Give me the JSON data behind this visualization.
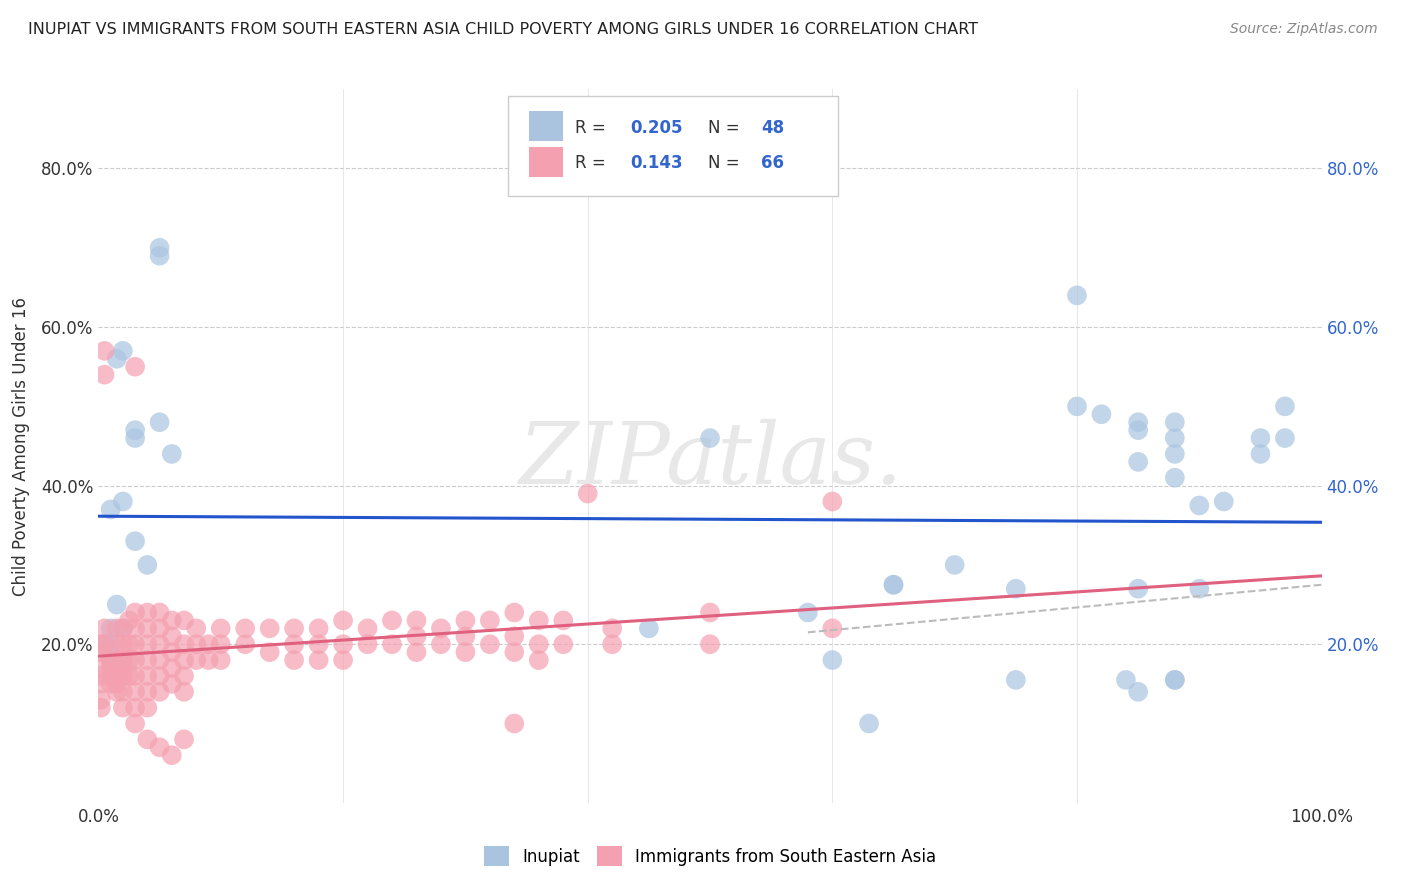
{
  "title": "INUPIAT VS IMMIGRANTS FROM SOUTH EASTERN ASIA CHILD POVERTY AMONG GIRLS UNDER 16 CORRELATION CHART",
  "source": "Source: ZipAtlas.com",
  "ylabel": "Child Poverty Among Girls Under 16",
  "xlim": [
    0.0,
    1.0
  ],
  "ylim": [
    0.0,
    0.9
  ],
  "background_color": "#ffffff",
  "grid_color": "#cccccc",
  "watermark_text": "ZIPatlas.",
  "inupiat_color": "#aac4e0",
  "immigrants_color": "#f4a0b0",
  "inupiat_line_color": "#2255cc",
  "immigrants_line_color": "#e06080",
  "dash_line_color": "#bbbbbb",
  "inupiat_scatter": [
    [
      0.005,
      0.2
    ],
    [
      0.01,
      0.22
    ],
    [
      0.01,
      0.18
    ],
    [
      0.01,
      0.2
    ],
    [
      0.015,
      0.25
    ],
    [
      0.02,
      0.57
    ],
    [
      0.02,
      0.18
    ],
    [
      0.02,
      0.22
    ],
    [
      0.03,
      0.46
    ],
    [
      0.03,
      0.33
    ],
    [
      0.04,
      0.3
    ],
    [
      0.05,
      0.7
    ],
    [
      0.05,
      0.69
    ],
    [
      0.05,
      0.48
    ],
    [
      0.06,
      0.44
    ],
    [
      0.03,
      0.47
    ],
    [
      0.02,
      0.38
    ],
    [
      0.015,
      0.56
    ],
    [
      0.01,
      0.37
    ],
    [
      0.5,
      0.46
    ],
    [
      0.58,
      0.24
    ],
    [
      0.65,
      0.275
    ],
    [
      0.65,
      0.275
    ],
    [
      0.7,
      0.3
    ],
    [
      0.75,
      0.27
    ],
    [
      0.8,
      0.64
    ],
    [
      0.8,
      0.5
    ],
    [
      0.82,
      0.49
    ],
    [
      0.84,
      0.155
    ],
    [
      0.85,
      0.48
    ],
    [
      0.85,
      0.47
    ],
    [
      0.85,
      0.43
    ],
    [
      0.85,
      0.27
    ],
    [
      0.88,
      0.48
    ],
    [
      0.88,
      0.46
    ],
    [
      0.88,
      0.44
    ],
    [
      0.88,
      0.41
    ],
    [
      0.9,
      0.375
    ],
    [
      0.9,
      0.27
    ],
    [
      0.92,
      0.38
    ],
    [
      0.95,
      0.46
    ],
    [
      0.95,
      0.44
    ],
    [
      0.97,
      0.5
    ],
    [
      0.97,
      0.46
    ],
    [
      0.6,
      0.18
    ],
    [
      0.63,
      0.1
    ],
    [
      0.75,
      0.155
    ],
    [
      0.85,
      0.14
    ],
    [
      0.88,
      0.155
    ],
    [
      0.88,
      0.155
    ],
    [
      0.45,
      0.22
    ]
  ],
  "immigrants_scatter": [
    [
      0.002,
      0.2
    ],
    [
      0.002,
      0.19
    ],
    [
      0.002,
      0.17
    ],
    [
      0.002,
      0.16
    ],
    [
      0.002,
      0.15
    ],
    [
      0.002,
      0.13
    ],
    [
      0.002,
      0.12
    ],
    [
      0.005,
      0.57
    ],
    [
      0.005,
      0.54
    ],
    [
      0.005,
      0.22
    ],
    [
      0.005,
      0.2
    ],
    [
      0.01,
      0.18
    ],
    [
      0.01,
      0.17
    ],
    [
      0.01,
      0.16
    ],
    [
      0.01,
      0.15
    ],
    [
      0.015,
      0.22
    ],
    [
      0.015,
      0.2
    ],
    [
      0.015,
      0.18
    ],
    [
      0.015,
      0.17
    ],
    [
      0.015,
      0.16
    ],
    [
      0.015,
      0.15
    ],
    [
      0.015,
      0.14
    ],
    [
      0.02,
      0.22
    ],
    [
      0.02,
      0.2
    ],
    [
      0.02,
      0.18
    ],
    [
      0.02,
      0.17
    ],
    [
      0.02,
      0.16
    ],
    [
      0.02,
      0.14
    ],
    [
      0.02,
      0.12
    ],
    [
      0.025,
      0.23
    ],
    [
      0.025,
      0.2
    ],
    [
      0.025,
      0.18
    ],
    [
      0.025,
      0.16
    ],
    [
      0.03,
      0.55
    ],
    [
      0.03,
      0.24
    ],
    [
      0.03,
      0.22
    ],
    [
      0.03,
      0.2
    ],
    [
      0.03,
      0.18
    ],
    [
      0.03,
      0.16
    ],
    [
      0.03,
      0.14
    ],
    [
      0.03,
      0.12
    ],
    [
      0.03,
      0.1
    ],
    [
      0.04,
      0.24
    ],
    [
      0.04,
      0.22
    ],
    [
      0.04,
      0.2
    ],
    [
      0.04,
      0.18
    ],
    [
      0.04,
      0.16
    ],
    [
      0.04,
      0.14
    ],
    [
      0.04,
      0.12
    ],
    [
      0.04,
      0.08
    ],
    [
      0.05,
      0.24
    ],
    [
      0.05,
      0.22
    ],
    [
      0.05,
      0.2
    ],
    [
      0.05,
      0.18
    ],
    [
      0.05,
      0.16
    ],
    [
      0.05,
      0.14
    ],
    [
      0.05,
      0.07
    ],
    [
      0.06,
      0.23
    ],
    [
      0.06,
      0.21
    ],
    [
      0.06,
      0.19
    ],
    [
      0.06,
      0.17
    ],
    [
      0.06,
      0.15
    ],
    [
      0.06,
      0.06
    ],
    [
      0.07,
      0.23
    ],
    [
      0.07,
      0.2
    ],
    [
      0.07,
      0.18
    ],
    [
      0.07,
      0.16
    ],
    [
      0.07,
      0.14
    ],
    [
      0.07,
      0.08
    ],
    [
      0.08,
      0.22
    ],
    [
      0.08,
      0.2
    ],
    [
      0.08,
      0.18
    ],
    [
      0.09,
      0.2
    ],
    [
      0.09,
      0.18
    ],
    [
      0.1,
      0.22
    ],
    [
      0.1,
      0.2
    ],
    [
      0.1,
      0.18
    ],
    [
      0.12,
      0.22
    ],
    [
      0.12,
      0.2
    ],
    [
      0.14,
      0.22
    ],
    [
      0.14,
      0.19
    ],
    [
      0.16,
      0.22
    ],
    [
      0.16,
      0.2
    ],
    [
      0.16,
      0.18
    ],
    [
      0.18,
      0.22
    ],
    [
      0.18,
      0.2
    ],
    [
      0.18,
      0.18
    ],
    [
      0.2,
      0.23
    ],
    [
      0.2,
      0.2
    ],
    [
      0.2,
      0.18
    ],
    [
      0.22,
      0.22
    ],
    [
      0.22,
      0.2
    ],
    [
      0.24,
      0.23
    ],
    [
      0.24,
      0.2
    ],
    [
      0.26,
      0.23
    ],
    [
      0.26,
      0.21
    ],
    [
      0.26,
      0.19
    ],
    [
      0.28,
      0.22
    ],
    [
      0.28,
      0.2
    ],
    [
      0.3,
      0.23
    ],
    [
      0.3,
      0.21
    ],
    [
      0.3,
      0.19
    ],
    [
      0.32,
      0.23
    ],
    [
      0.32,
      0.2
    ],
    [
      0.34,
      0.24
    ],
    [
      0.34,
      0.21
    ],
    [
      0.34,
      0.19
    ],
    [
      0.34,
      0.1
    ],
    [
      0.36,
      0.23
    ],
    [
      0.36,
      0.2
    ],
    [
      0.36,
      0.18
    ],
    [
      0.38,
      0.23
    ],
    [
      0.38,
      0.2
    ],
    [
      0.4,
      0.39
    ],
    [
      0.42,
      0.22
    ],
    [
      0.42,
      0.2
    ],
    [
      0.5,
      0.24
    ],
    [
      0.6,
      0.38
    ],
    [
      0.6,
      0.22
    ],
    [
      0.5,
      0.2
    ]
  ]
}
